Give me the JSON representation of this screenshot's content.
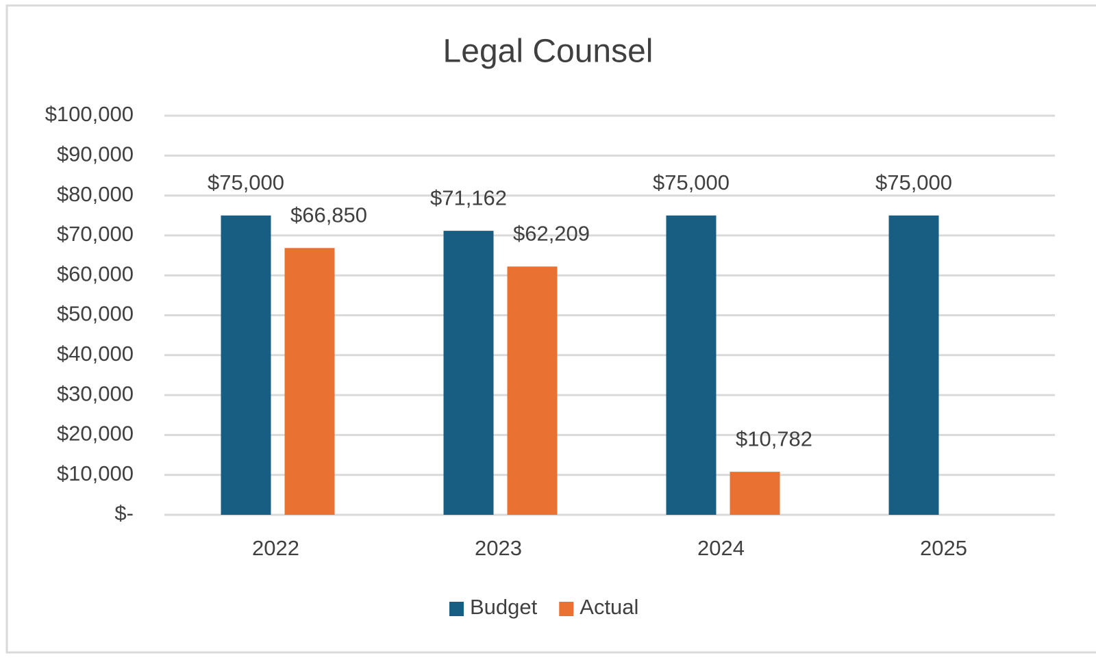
{
  "chart_data": {
    "type": "bar",
    "title": "Legal Counsel",
    "categories": [
      "2022",
      "2023",
      "2024",
      "2025"
    ],
    "series": [
      {
        "name": "Budget",
        "color": "#175e82",
        "values": [
          75000,
          71162,
          75000,
          75000
        ],
        "value_labels": [
          "$75,000",
          "$71,162",
          "$75,000",
          "$75,000"
        ]
      },
      {
        "name": "Actual",
        "color": "#e97132",
        "values": [
          66850,
          62209,
          10782,
          null
        ],
        "value_labels": [
          "$66,850",
          "$62,209",
          "$10,782",
          null
        ]
      }
    ],
    "ylim": [
      0,
      100000
    ],
    "yticks": [
      {
        "value": 0,
        "label": "$-"
      },
      {
        "value": 10000,
        "label": "$10,000"
      },
      {
        "value": 20000,
        "label": "$20,000"
      },
      {
        "value": 30000,
        "label": "$30,000"
      },
      {
        "value": 40000,
        "label": "$40,000"
      },
      {
        "value": 50000,
        "label": "$50,000"
      },
      {
        "value": 60000,
        "label": "$60,000"
      },
      {
        "value": 70000,
        "label": "$70,000"
      },
      {
        "value": 80000,
        "label": "$80,000"
      },
      {
        "value": 90000,
        "label": "$90,000"
      },
      {
        "value": 100000,
        "label": "$100,000"
      }
    ],
    "grid": true,
    "legend": "bottom"
  }
}
